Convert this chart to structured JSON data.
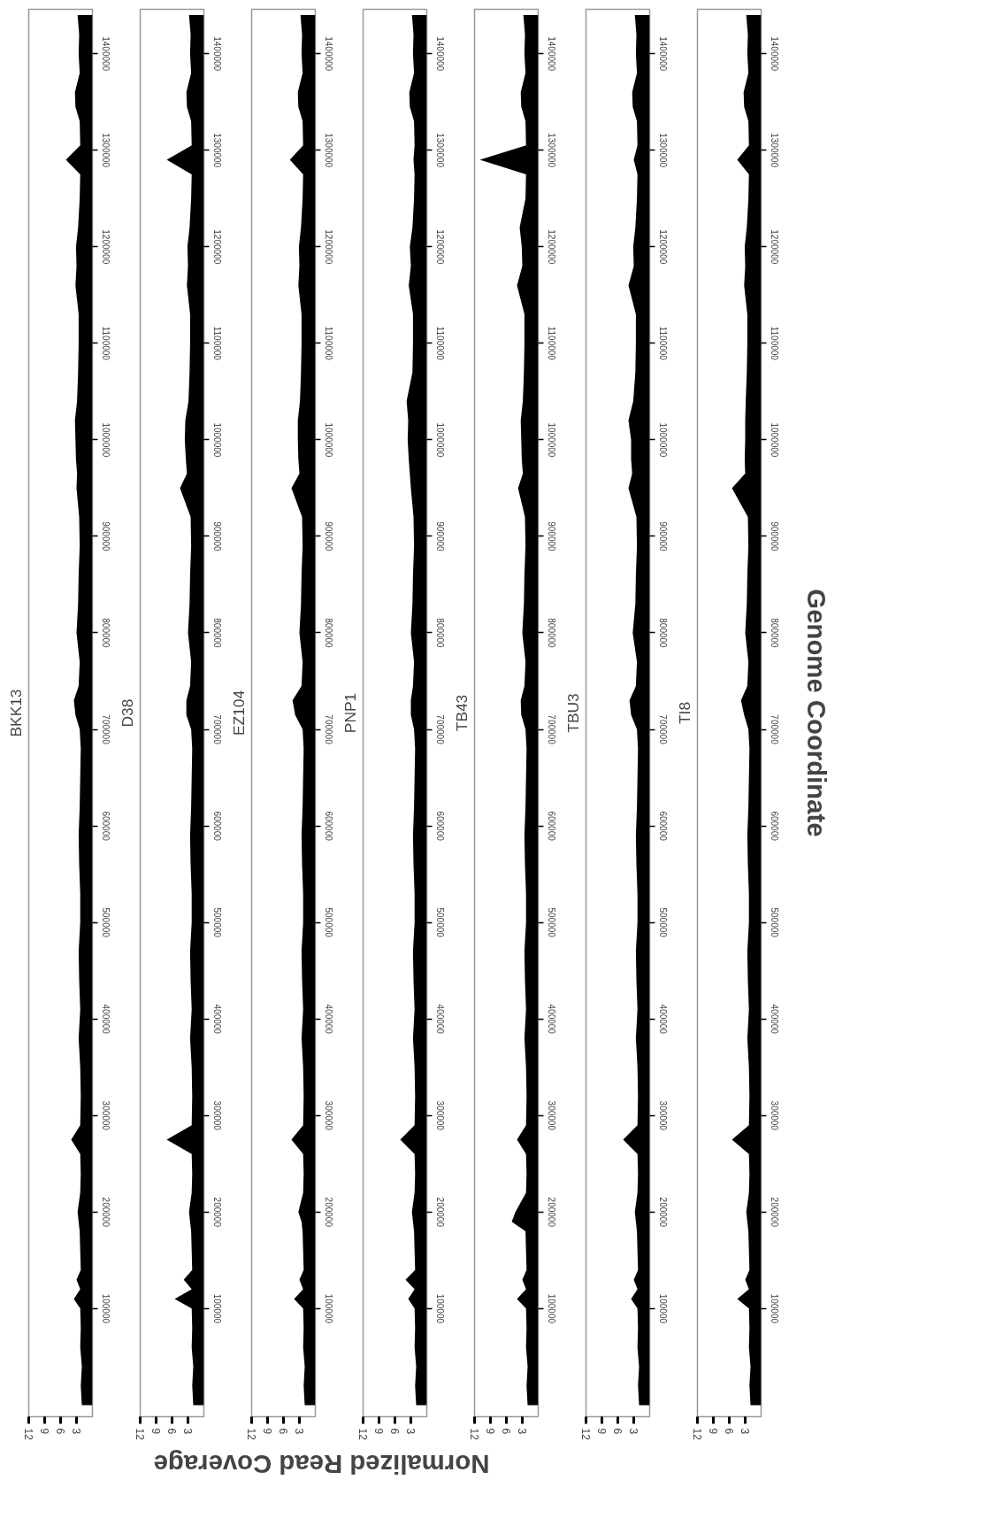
{
  "chart_data": [
    {
      "type": "area",
      "orientation": "horizontal",
      "title": "BKK13",
      "grid": false,
      "xlabel": "Normalized Read Coverage",
      "xlim": [
        12,
        0
      ],
      "xticks": [
        12,
        9,
        6,
        3
      ],
      "ylim": [
        -12000,
        1446000
      ],
      "yticks": [
        100000,
        200000,
        300000,
        400000,
        500000,
        600000,
        700000,
        800000,
        900000,
        1000000,
        1100000,
        1200000,
        1300000,
        1400000
      ],
      "x": [
        0,
        20000,
        40000,
        60000,
        80000,
        100000,
        110000,
        120000,
        130000,
        140000,
        160000,
        180000,
        190000,
        200000,
        220000,
        240000,
        260000,
        275000,
        290000,
        320000,
        350000,
        380000,
        410000,
        440000,
        470000,
        500000,
        530000,
        560000,
        590000,
        620000,
        650000,
        680000,
        700000,
        715000,
        730000,
        745000,
        770000,
        800000,
        830000,
        860000,
        890000,
        920000,
        950000,
        965000,
        980000,
        1000000,
        1020000,
        1040000,
        1070000,
        1100000,
        1130000,
        1160000,
        1180000,
        1200000,
        1220000,
        1250000,
        1275000,
        1290000,
        1305000,
        1330000,
        1345000,
        1360000,
        1380000,
        1400000,
        1420000,
        1440000
      ],
      "series": [
        {
          "color": "#000000",
          "values": [
            2.0,
            2.2,
            2.0,
            2.3,
            2.2,
            2.3,
            3.5,
            2.3,
            3.0,
            2.2,
            2.3,
            2.4,
            2.6,
            2.8,
            2.3,
            2.2,
            2.3,
            4.0,
            2.3,
            2.2,
            2.3,
            2.6,
            2.3,
            2.5,
            2.6,
            2.3,
            2.3,
            2.5,
            2.6,
            2.4,
            2.3,
            2.2,
            2.4,
            3.2,
            3.5,
            2.6,
            2.4,
            3.0,
            2.7,
            2.6,
            2.4,
            2.5,
            3.0,
            2.9,
            3.1,
            3.2,
            3.3,
            2.9,
            2.7,
            2.6,
            2.6,
            3.2,
            3.0,
            3.1,
            2.7,
            2.4,
            2.3,
            5.0,
            2.3,
            2.4,
            3.2,
            3.3,
            2.4,
            2.6,
            2.5,
            2.8
          ]
        }
      ]
    },
    {
      "type": "area",
      "orientation": "horizontal",
      "title": "D38",
      "grid": false,
      "xlim": [
        12,
        0
      ],
      "xticks": [
        12,
        9,
        6,
        3
      ],
      "ylim": [
        -12000,
        1446000
      ],
      "yticks": [
        100000,
        200000,
        300000,
        400000,
        500000,
        600000,
        700000,
        800000,
        900000,
        1000000,
        1100000,
        1200000,
        1300000,
        1400000
      ],
      "x": [
        0,
        20000,
        40000,
        60000,
        80000,
        100000,
        110000,
        120000,
        130000,
        140000,
        160000,
        180000,
        190000,
        200000,
        220000,
        240000,
        260000,
        275000,
        290000,
        320000,
        350000,
        380000,
        410000,
        440000,
        470000,
        500000,
        530000,
        560000,
        590000,
        620000,
        650000,
        680000,
        700000,
        715000,
        730000,
        745000,
        770000,
        800000,
        830000,
        860000,
        890000,
        920000,
        950000,
        965000,
        980000,
        1000000,
        1020000,
        1040000,
        1070000,
        1100000,
        1130000,
        1160000,
        1180000,
        1200000,
        1220000,
        1250000,
        1275000,
        1290000,
        1305000,
        1330000,
        1345000,
        1360000,
        1380000,
        1400000,
        1420000,
        1440000
      ],
      "series": [
        {
          "color": "#000000",
          "values": [
            2.0,
            2.2,
            2.0,
            2.3,
            2.2,
            2.3,
            5.5,
            2.3,
            3.8,
            2.2,
            2.3,
            2.4,
            2.6,
            2.8,
            2.3,
            2.2,
            2.3,
            7.0,
            2.3,
            2.2,
            2.3,
            2.6,
            2.3,
            2.5,
            2.6,
            2.3,
            2.3,
            2.5,
            2.6,
            2.4,
            2.3,
            2.2,
            2.4,
            3.3,
            3.3,
            2.6,
            2.4,
            3.0,
            2.7,
            2.6,
            2.4,
            2.5,
            4.5,
            3.2,
            3.4,
            3.6,
            3.5,
            2.9,
            2.7,
            2.6,
            2.6,
            3.2,
            3.0,
            3.1,
            2.7,
            2.4,
            2.3,
            7.0,
            2.3,
            2.4,
            3.2,
            3.3,
            2.4,
            2.6,
            2.5,
            2.8
          ]
        }
      ]
    },
    {
      "type": "area",
      "orientation": "horizontal",
      "title": "EZ104",
      "grid": false,
      "xlim": [
        12,
        0
      ],
      "xticks": [
        12,
        9,
        6,
        3
      ],
      "ylim": [
        -12000,
        1446000
      ],
      "yticks": [
        100000,
        200000,
        300000,
        400000,
        500000,
        600000,
        700000,
        800000,
        900000,
        1000000,
        1100000,
        1200000,
        1300000,
        1400000
      ],
      "x": [
        0,
        20000,
        40000,
        60000,
        80000,
        100000,
        110000,
        120000,
        130000,
        140000,
        160000,
        180000,
        190000,
        200000,
        220000,
        240000,
        260000,
        275000,
        290000,
        320000,
        350000,
        380000,
        410000,
        440000,
        470000,
        500000,
        530000,
        560000,
        590000,
        620000,
        650000,
        680000,
        700000,
        715000,
        730000,
        745000,
        770000,
        800000,
        830000,
        860000,
        890000,
        920000,
        950000,
        965000,
        980000,
        1000000,
        1020000,
        1040000,
        1070000,
        1100000,
        1130000,
        1160000,
        1180000,
        1200000,
        1220000,
        1250000,
        1275000,
        1290000,
        1305000,
        1330000,
        1345000,
        1360000,
        1380000,
        1400000,
        1420000,
        1440000
      ],
      "series": [
        {
          "color": "#000000",
          "values": [
            2.0,
            2.2,
            2.0,
            2.3,
            2.2,
            2.3,
            4.0,
            2.3,
            3.0,
            2.2,
            2.3,
            2.4,
            2.6,
            3.2,
            2.3,
            2.2,
            2.3,
            4.5,
            2.3,
            2.2,
            2.3,
            2.6,
            2.3,
            2.5,
            2.6,
            2.3,
            2.3,
            2.5,
            2.6,
            2.4,
            2.3,
            2.2,
            2.4,
            3.8,
            4.3,
            2.6,
            2.4,
            3.0,
            2.7,
            2.6,
            2.4,
            2.5,
            4.5,
            3.0,
            3.2,
            3.3,
            3.3,
            2.9,
            2.7,
            2.6,
            2.6,
            3.2,
            3.0,
            3.1,
            2.7,
            2.4,
            2.3,
            4.8,
            2.3,
            2.4,
            3.2,
            3.3,
            2.4,
            2.6,
            2.5,
            2.8
          ]
        }
      ]
    },
    {
      "type": "area",
      "orientation": "horizontal",
      "title": "PNP1",
      "grid": false,
      "xlim": [
        12,
        0
      ],
      "xticks": [
        12,
        9,
        6,
        3
      ],
      "ylim": [
        -12000,
        1446000
      ],
      "yticks": [
        100000,
        200000,
        300000,
        400000,
        500000,
        600000,
        700000,
        800000,
        900000,
        1000000,
        1100000,
        1200000,
        1300000,
        1400000
      ],
      "x": [
        0,
        20000,
        40000,
        60000,
        80000,
        100000,
        110000,
        120000,
        130000,
        140000,
        160000,
        180000,
        190000,
        200000,
        220000,
        240000,
        260000,
        275000,
        290000,
        320000,
        350000,
        380000,
        410000,
        440000,
        470000,
        500000,
        530000,
        560000,
        590000,
        620000,
        650000,
        680000,
        700000,
        715000,
        730000,
        745000,
        770000,
        800000,
        830000,
        860000,
        890000,
        920000,
        950000,
        965000,
        980000,
        1000000,
        1020000,
        1040000,
        1070000,
        1100000,
        1130000,
        1160000,
        1180000,
        1200000,
        1220000,
        1250000,
        1275000,
        1290000,
        1305000,
        1330000,
        1345000,
        1360000,
        1380000,
        1400000,
        1420000,
        1440000
      ],
      "series": [
        {
          "color": "#000000",
          "values": [
            2.0,
            2.2,
            2.0,
            2.3,
            2.2,
            2.3,
            3.5,
            2.3,
            4.0,
            2.2,
            2.3,
            2.4,
            2.6,
            2.8,
            2.3,
            2.2,
            2.3,
            5.0,
            2.3,
            2.2,
            2.3,
            2.6,
            2.3,
            2.5,
            2.6,
            2.3,
            2.3,
            2.5,
            2.6,
            2.4,
            2.3,
            2.2,
            2.4,
            3.0,
            3.0,
            2.6,
            2.4,
            3.0,
            2.7,
            2.6,
            2.4,
            2.5,
            3.0,
            3.2,
            3.4,
            3.6,
            3.5,
            3.8,
            2.7,
            2.6,
            2.6,
            3.4,
            3.0,
            3.2,
            2.7,
            2.4,
            2.3,
            2.5,
            2.3,
            2.4,
            3.2,
            3.3,
            2.4,
            2.6,
            2.5,
            2.8
          ]
        }
      ]
    },
    {
      "type": "area",
      "orientation": "horizontal",
      "title": "TB43",
      "grid": false,
      "xlim": [
        12,
        0
      ],
      "xticks": [
        12,
        9,
        6,
        3
      ],
      "ylim": [
        -12000,
        1446000
      ],
      "yticks": [
        100000,
        200000,
        300000,
        400000,
        500000,
        600000,
        700000,
        800000,
        900000,
        1000000,
        1100000,
        1200000,
        1300000,
        1400000
      ],
      "x": [
        0,
        20000,
        40000,
        60000,
        80000,
        100000,
        110000,
        120000,
        130000,
        140000,
        160000,
        180000,
        190000,
        200000,
        220000,
        240000,
        260000,
        275000,
        290000,
        320000,
        350000,
        380000,
        410000,
        440000,
        470000,
        500000,
        530000,
        560000,
        590000,
        620000,
        650000,
        680000,
        700000,
        715000,
        730000,
        745000,
        770000,
        800000,
        830000,
        860000,
        890000,
        920000,
        950000,
        965000,
        980000,
        1000000,
        1020000,
        1040000,
        1070000,
        1100000,
        1130000,
        1160000,
        1180000,
        1200000,
        1220000,
        1250000,
        1275000,
        1290000,
        1305000,
        1330000,
        1345000,
        1360000,
        1380000,
        1400000,
        1420000,
        1440000
      ],
      "series": [
        {
          "color": "#000000",
          "values": [
            2.0,
            2.2,
            2.0,
            2.3,
            2.2,
            2.3,
            4.0,
            2.3,
            3.0,
            2.2,
            2.3,
            2.4,
            5.0,
            4.3,
            2.3,
            2.2,
            2.3,
            4.0,
            2.3,
            2.2,
            2.3,
            2.6,
            2.3,
            2.5,
            2.6,
            2.3,
            2.3,
            2.5,
            2.6,
            2.4,
            2.3,
            2.2,
            2.4,
            3.2,
            3.3,
            2.6,
            2.4,
            3.0,
            2.7,
            2.6,
            2.4,
            2.5,
            3.8,
            2.9,
            3.1,
            3.2,
            3.3,
            2.9,
            2.7,
            2.6,
            2.6,
            4.0,
            3.0,
            3.1,
            3.5,
            2.4,
            2.3,
            11.0,
            2.3,
            2.4,
            3.2,
            3.3,
            2.4,
            2.6,
            2.5,
            2.8
          ]
        }
      ]
    },
    {
      "type": "area",
      "orientation": "horizontal",
      "title": "TBU3",
      "grid": false,
      "xlim": [
        12,
        0
      ],
      "xticks": [
        12,
        9,
        6,
        3
      ],
      "ylim": [
        -12000,
        1446000
      ],
      "yticks": [
        100000,
        200000,
        300000,
        400000,
        500000,
        600000,
        700000,
        800000,
        900000,
        1000000,
        1100000,
        1200000,
        1300000,
        1400000
      ],
      "x": [
        0,
        20000,
        40000,
        60000,
        80000,
        100000,
        110000,
        120000,
        130000,
        140000,
        160000,
        180000,
        190000,
        200000,
        220000,
        240000,
        260000,
        275000,
        290000,
        320000,
        350000,
        380000,
        410000,
        440000,
        470000,
        500000,
        530000,
        560000,
        590000,
        620000,
        650000,
        680000,
        700000,
        715000,
        730000,
        745000,
        770000,
        800000,
        830000,
        860000,
        890000,
        920000,
        950000,
        965000,
        980000,
        1000000,
        1020000,
        1040000,
        1070000,
        1100000,
        1130000,
        1160000,
        1180000,
        1200000,
        1220000,
        1250000,
        1275000,
        1290000,
        1305000,
        1330000,
        1345000,
        1360000,
        1380000,
        1400000,
        1420000,
        1440000
      ],
      "series": [
        {
          "color": "#000000",
          "values": [
            2.0,
            2.2,
            2.0,
            2.3,
            2.2,
            2.3,
            3.5,
            2.3,
            3.0,
            2.2,
            2.3,
            2.4,
            2.6,
            2.8,
            2.3,
            2.2,
            2.3,
            5.0,
            2.3,
            2.2,
            2.3,
            2.6,
            2.3,
            2.5,
            2.6,
            2.3,
            2.3,
            2.5,
            2.6,
            2.4,
            2.3,
            2.2,
            2.4,
            3.5,
            3.8,
            2.6,
            2.4,
            3.2,
            2.7,
            2.6,
            2.4,
            2.5,
            4.0,
            3.3,
            3.5,
            3.5,
            4.0,
            3.1,
            2.7,
            2.6,
            2.6,
            4.0,
            3.0,
            3.1,
            2.7,
            2.4,
            2.3,
            3.0,
            2.3,
            2.4,
            3.2,
            3.3,
            2.4,
            2.6,
            2.5,
            2.8
          ]
        }
      ]
    },
    {
      "type": "area",
      "orientation": "horizontal",
      "title": "TI8",
      "grid": false,
      "ylabel": "Genome Coordinate",
      "xlim": [
        12,
        0
      ],
      "xticks": [
        12,
        9,
        6,
        3
      ],
      "ylim": [
        -12000,
        1446000
      ],
      "yticks": [
        100000,
        200000,
        300000,
        400000,
        500000,
        600000,
        700000,
        800000,
        900000,
        1000000,
        1100000,
        1200000,
        1300000,
        1400000
      ],
      "x": [
        0,
        20000,
        40000,
        60000,
        80000,
        100000,
        110000,
        120000,
        130000,
        140000,
        160000,
        180000,
        190000,
        200000,
        220000,
        240000,
        260000,
        275000,
        290000,
        320000,
        350000,
        380000,
        410000,
        440000,
        470000,
        500000,
        530000,
        560000,
        590000,
        620000,
        650000,
        680000,
        700000,
        715000,
        730000,
        745000,
        770000,
        800000,
        830000,
        860000,
        890000,
        920000,
        950000,
        965000,
        980000,
        1000000,
        1020000,
        1040000,
        1070000,
        1100000,
        1130000,
        1160000,
        1180000,
        1200000,
        1220000,
        1250000,
        1275000,
        1290000,
        1305000,
        1330000,
        1345000,
        1360000,
        1380000,
        1400000,
        1420000,
        1440000
      ],
      "series": [
        {
          "color": "#000000",
          "values": [
            2.0,
            2.2,
            2.0,
            2.3,
            2.2,
            2.3,
            4.5,
            2.3,
            3.0,
            2.2,
            2.3,
            2.4,
            2.6,
            2.8,
            2.3,
            2.2,
            2.3,
            5.5,
            2.3,
            2.2,
            2.3,
            2.6,
            2.3,
            2.5,
            2.6,
            2.3,
            2.3,
            2.5,
            2.6,
            2.4,
            2.3,
            2.2,
            2.4,
            3.2,
            3.8,
            2.6,
            2.4,
            3.0,
            2.7,
            2.6,
            2.4,
            2.5,
            5.5,
            3.0,
            3.1,
            3.0,
            3.0,
            2.9,
            2.7,
            2.6,
            2.6,
            3.2,
            3.0,
            3.1,
            2.7,
            2.4,
            2.3,
            4.5,
            2.3,
            2.4,
            3.2,
            3.3,
            2.4,
            2.6,
            2.5,
            2.8
          ]
        }
      ]
    }
  ]
}
